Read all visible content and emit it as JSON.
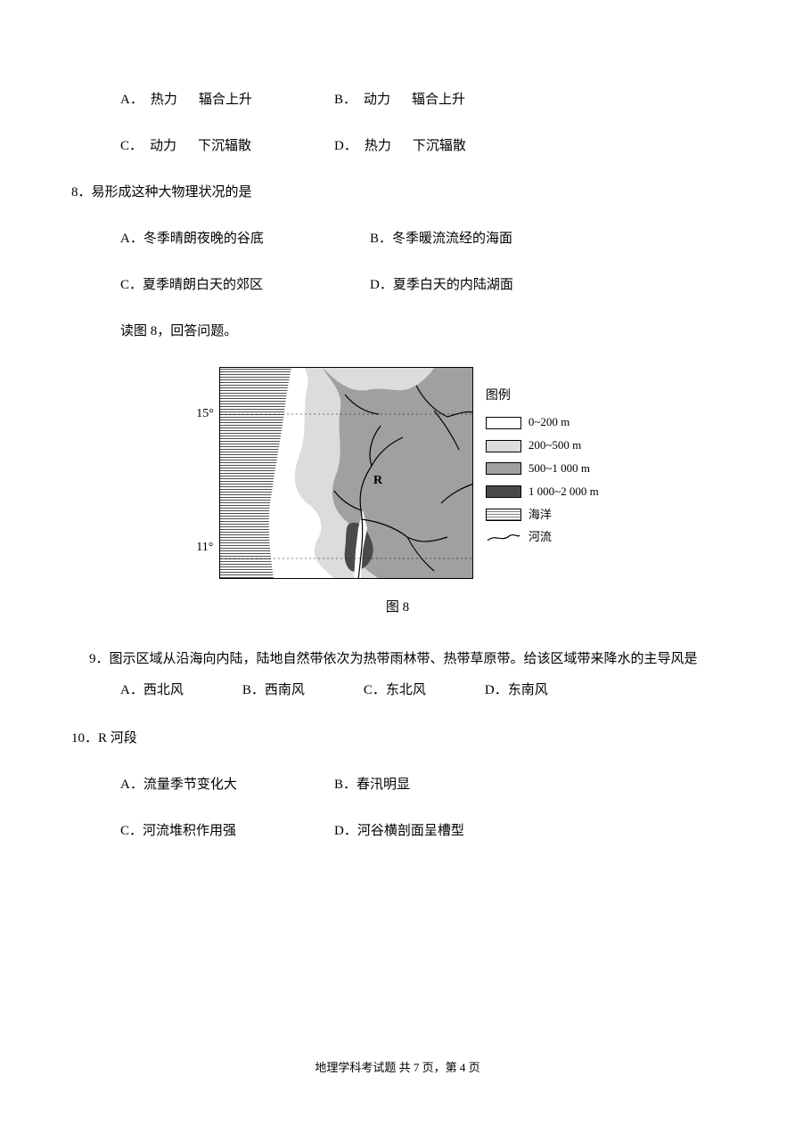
{
  "q7_options": {
    "a_label": "A．",
    "a_t1": "热力",
    "a_t2": "辐合上升",
    "b_label": "B．",
    "b_t1": "动力",
    "b_t2": "辐合上升",
    "c_label": "C．",
    "c_t1": "动力",
    "c_t2": "下沉辐散",
    "d_label": "D．",
    "d_t1": "热力",
    "d_t2": "下沉辐散"
  },
  "q8": {
    "stem": "8．易形成这种大物理状况的是",
    "a": "A．冬季晴朗夜晚的谷底",
    "b": "B．冬季暖流流经的海面",
    "c": "C．夏季晴朗白天的郊区",
    "d": "D．夏季白天的内陆湖面"
  },
  "instruction": "读图 8，回答问题。",
  "figure": {
    "lat_top": "15°",
    "lat_bottom": "11°",
    "marker": "R",
    "caption": "图 8",
    "colors": {
      "ocean_line": "#000000",
      "elev0": "#ffffff",
      "elev1": "#dcdcdc",
      "elev2": "#a0a0a0",
      "elev3": "#4a4a4a",
      "border": "#000000"
    },
    "legend": {
      "title": "图例",
      "items": [
        {
          "label": "0~200 m",
          "fill": "#ffffff"
        },
        {
          "label": "200~500 m",
          "fill": "#dcdcdc"
        },
        {
          "label": "500~1 000 m",
          "fill": "#a0a0a0"
        },
        {
          "label": "1 000~2 000 m",
          "fill": "#4a4a4a"
        },
        {
          "label": "海洋",
          "fill": "hatch"
        },
        {
          "label": "河流",
          "fill": "river"
        }
      ]
    }
  },
  "q9": {
    "stem": "9．图示区域从沿海向内陆，陆地自然带依次为热带雨林带、热带草原带。给该区域带来降水的主导风是",
    "a": "A．西北风",
    "b": "B．西南风",
    "c": "C．东北风",
    "d": "D．东南风"
  },
  "q10": {
    "stem": "10．R 河段",
    "a": "A．流量季节变化大",
    "b": "B．春汛明显",
    "c": "C．河流堆积作用强",
    "d": "D．河谷横剖面呈槽型"
  },
  "footer": "地理学科考试题 共 7 页，第 4 页"
}
